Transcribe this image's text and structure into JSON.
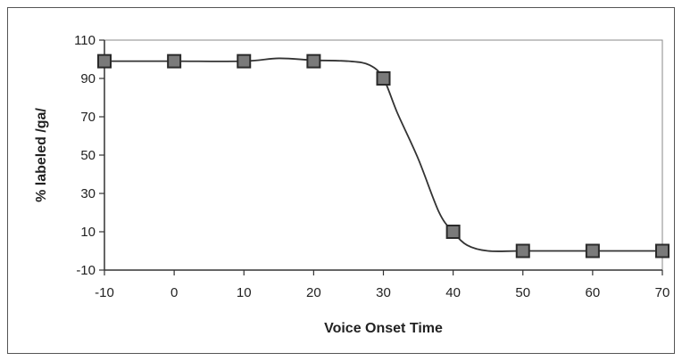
{
  "chart_data": {
    "type": "line",
    "title": "",
    "xlabel": "Voice Onset Time",
    "ylabel": "% labeled /ga/",
    "xlim": [
      -10,
      70
    ],
    "ylim": [
      -10,
      110
    ],
    "x_ticks": [
      "-10",
      "0",
      "10",
      "20",
      "30",
      "40",
      "50",
      "60",
      "70"
    ],
    "y_ticks": [
      "110",
      "90",
      "70",
      "50",
      "30",
      "10",
      "-10"
    ],
    "grid": false,
    "legend": "none",
    "series": [
      {
        "kind": "markers",
        "x": [
          -10,
          0,
          10,
          20,
          30,
          40,
          50,
          60,
          70
        ],
        "y": [
          99,
          99,
          99,
          99,
          90,
          10,
          0,
          0,
          0
        ]
      },
      {
        "kind": "fitted-curve",
        "x": [
          -10,
          0,
          10,
          15,
          20,
          25,
          28,
          30,
          32,
          35,
          38,
          40,
          42,
          45,
          50,
          60,
          70
        ],
        "y": [
          99,
          99,
          99,
          100.5,
          99.5,
          99,
          97,
          90,
          72,
          48,
          20,
          10,
          3,
          0,
          0,
          0,
          0
        ]
      }
    ],
    "colors": {
      "marker_fill": "#7a7a7a",
      "marker_stroke": "#2a2a2a",
      "line": "#333333",
      "axis": "#333333"
    }
  }
}
